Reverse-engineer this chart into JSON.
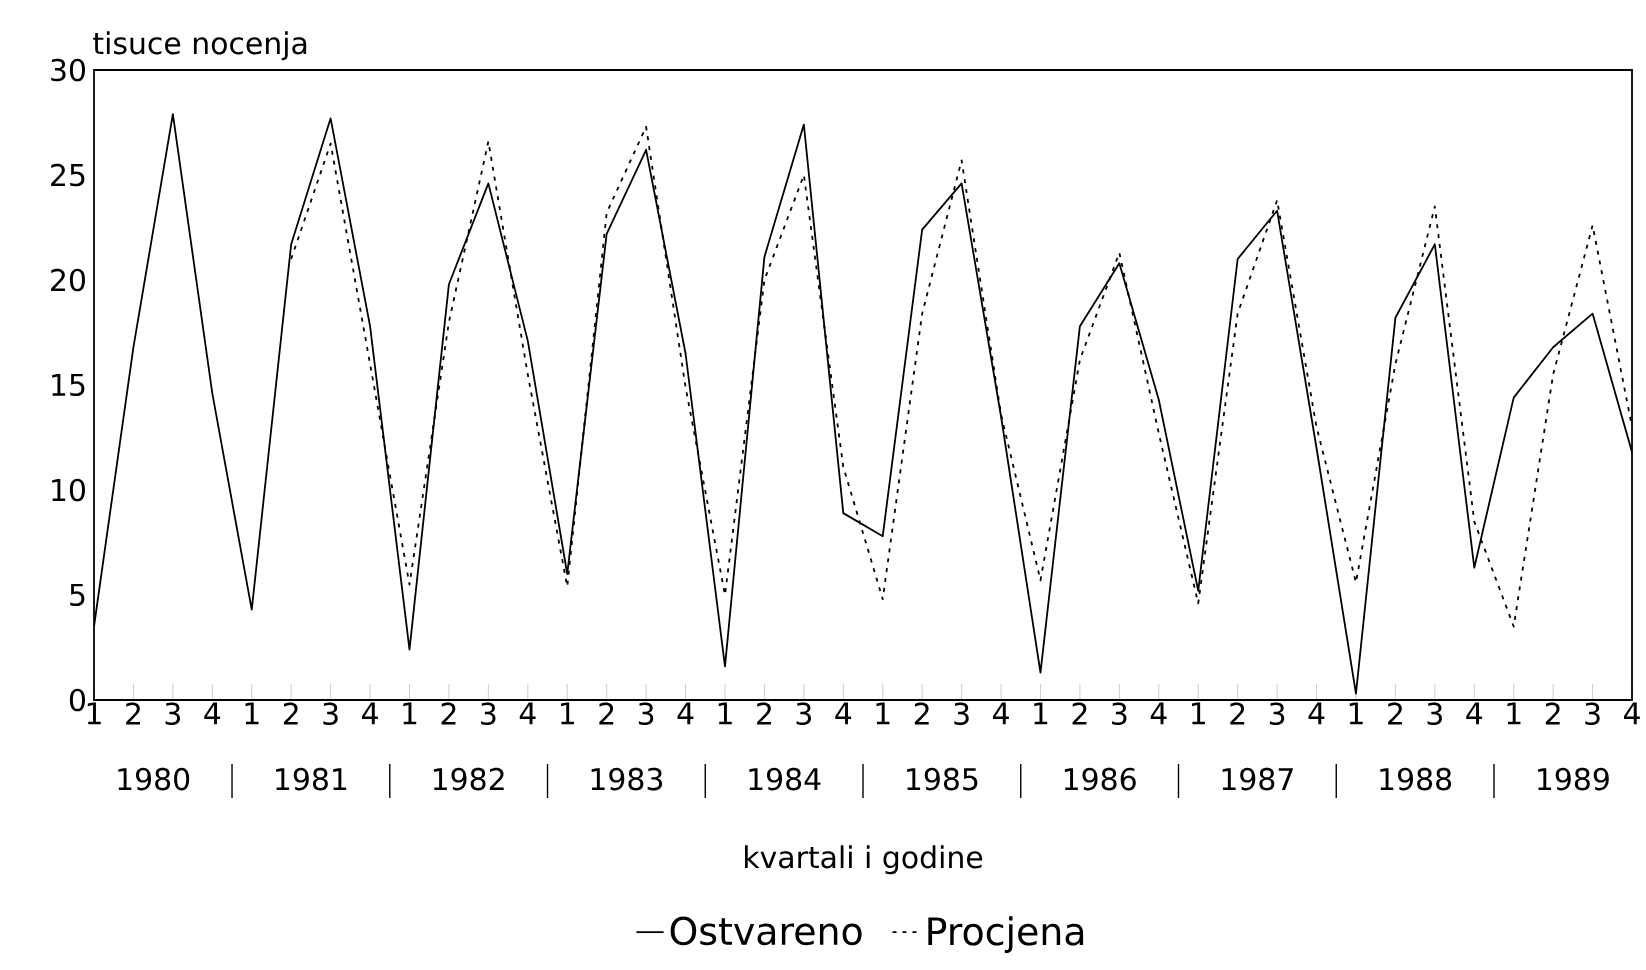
{
  "chart_data": {
    "type": "line",
    "ylabel": "tisuce nocenja",
    "xlabel": "kvartali i godine",
    "categories": [
      "1",
      "2",
      "3",
      "4",
      "1",
      "2",
      "3",
      "4",
      "1",
      "2",
      "3",
      "4",
      "1",
      "2",
      "3",
      "4",
      "1",
      "2",
      "3",
      "4",
      "1",
      "2",
      "3",
      "4",
      "1",
      "2",
      "3",
      "4",
      "1",
      "2",
      "3",
      "4",
      "1",
      "2",
      "3",
      "4",
      "1",
      "2",
      "3",
      "4"
    ],
    "annotations": [
      "1980",
      "1981",
      "1982",
      "1983",
      "1984",
      "1985",
      "1986",
      "1987",
      "1988",
      "1989"
    ],
    "series": [
      {
        "name": "Ostvareno",
        "color": "#000000",
        "line_style": "solid",
        "values": [
          3.5,
          16.8,
          27.9,
          14.6,
          4.3,
          21.7,
          27.7,
          17.8,
          2.4,
          19.8,
          24.6,
          17.1,
          6.0,
          22.2,
          26.2,
          16.5,
          1.6,
          21.1,
          27.4,
          8.9,
          7.8,
          22.4,
          24.6,
          13.5,
          1.3,
          17.8,
          20.8,
          14.3,
          5.2,
          21.0,
          23.3,
          12.0,
          0.3,
          18.2,
          21.7,
          6.3,
          14.4,
          16.8,
          18.4,
          11.8
        ]
      },
      {
        "name": "Procjena",
        "color": "#000000",
        "line_style": "dotted",
        "values": [
          null,
          null,
          null,
          null,
          null,
          21.0,
          26.5,
          16.0,
          5.5,
          18.0,
          26.6,
          15.5,
          5.4,
          23.2,
          27.3,
          14.9,
          5.0,
          20.0,
          25.0,
          11.1,
          4.8,
          18.4,
          25.7,
          13.6,
          5.7,
          16.2,
          21.3,
          12.7,
          4.6,
          18.4,
          23.8,
          13.0,
          5.6,
          16.0,
          23.5,
          8.5,
          3.5,
          15.5,
          22.6,
          13.0
        ]
      }
    ],
    "ylim": [
      0,
      30
    ],
    "yticks": [
      0,
      5,
      10,
      15,
      20,
      25,
      30
    ],
    "grid": false,
    "legend": "bottom",
    "marker": "none"
  }
}
